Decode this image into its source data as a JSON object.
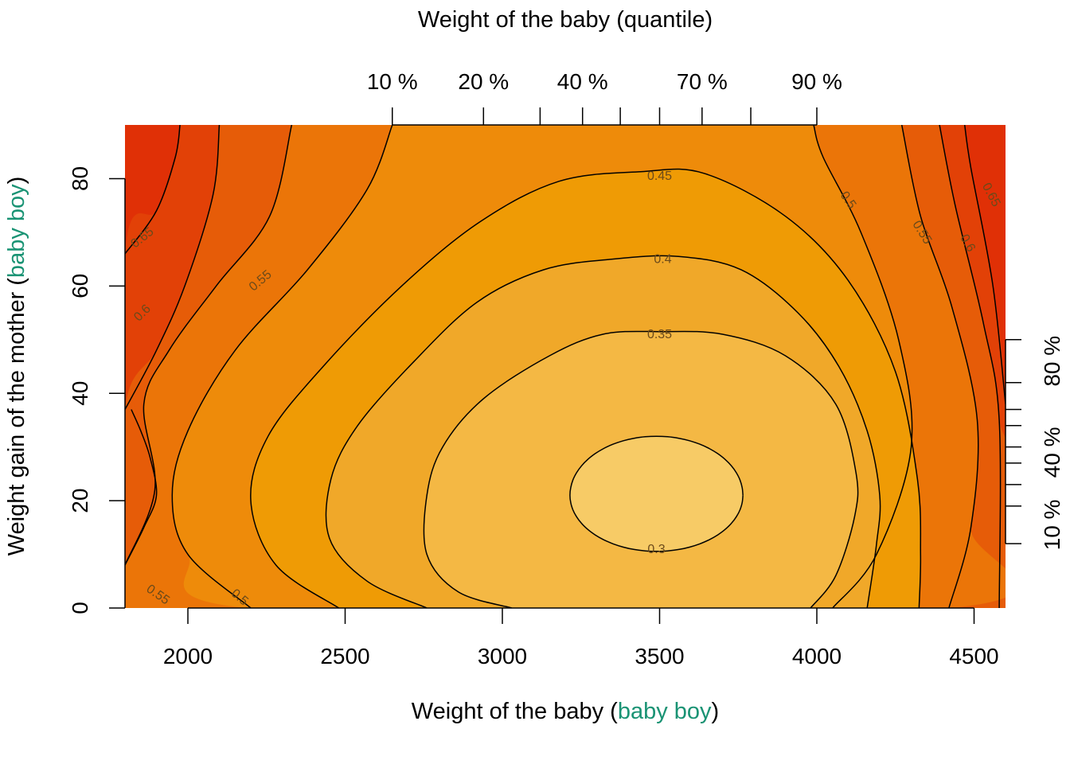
{
  "chart_data": {
    "type": "heatmap",
    "subtype": "filled-contour",
    "title": "",
    "xlabel": {
      "prefix": "Weight of the baby (",
      "highlight": "baby boy",
      "suffix": ")"
    },
    "ylabel": {
      "prefix": "Weight gain of the mother (",
      "highlight": "baby boy",
      "suffix": ")"
    },
    "top_axis_title": "Weight of the baby (quantile)",
    "highlight_color": "#1a9374",
    "xlim": [
      1800,
      4600
    ],
    "ylim": [
      0,
      90
    ],
    "x_ticks": [
      {
        "value": 2000,
        "label": "2000"
      },
      {
        "value": 2500,
        "label": "2500"
      },
      {
        "value": 3000,
        "label": "3000"
      },
      {
        "value": 3500,
        "label": "3500"
      },
      {
        "value": 4000,
        "label": "4000"
      },
      {
        "value": 4500,
        "label": "4500"
      }
    ],
    "y_ticks": [
      {
        "value": 0,
        "label": "0"
      },
      {
        "value": 20,
        "label": "20"
      },
      {
        "value": 40,
        "label": "40"
      },
      {
        "value": 60,
        "label": "60"
      },
      {
        "value": 80,
        "label": "80"
      }
    ],
    "top_quantile_ticks": [
      2650,
      2940,
      3120,
      3255,
      3375,
      3500,
      3635,
      3790,
      4000
    ],
    "top_quantile_labels": [
      {
        "value": 2650,
        "label": "10 %"
      },
      {
        "value": 2940,
        "label": "20 %"
      },
      {
        "value": 3255,
        "label": "40 %"
      },
      {
        "value": 3635,
        "label": "70 %"
      },
      {
        "value": 4000,
        "label": "90 %"
      }
    ],
    "right_quantile_ticks": [
      50,
      42,
      37,
      34,
      30,
      27,
      23,
      19,
      12
    ],
    "right_quantile_labels": [
      {
        "value": 46,
        "label": "80 %"
      },
      {
        "value": 29,
        "label": "40 %"
      },
      {
        "value": 15.5,
        "label": "10 %"
      }
    ],
    "contour_levels": [
      0.3,
      0.35,
      0.4,
      0.45,
      0.5,
      0.55,
      0.6,
      0.65
    ],
    "fill_colors": [
      "#f7cb66",
      "#f4b844",
      "#f0a829",
      "#ef9b05",
      "#ee8b0a",
      "#eb7508",
      "#e65c08",
      "#e24107",
      "#e03006"
    ],
    "contour_labels": [
      {
        "text": "0.3",
        "x": 3490,
        "y": 11,
        "angle": 0
      },
      {
        "text": "0.35",
        "x": 3500,
        "y": 51,
        "angle": 0
      },
      {
        "text": "0.4",
        "x": 3510,
        "y": 65,
        "angle": 0
      },
      {
        "text": "0.45",
        "x": 3500,
        "y": 80.5,
        "angle": 0
      },
      {
        "text": "0.5",
        "x": 4100,
        "y": 76,
        "angle": 55
      },
      {
        "text": "0.55",
        "x": 4335,
        "y": 70,
        "angle": 58
      },
      {
        "text": "0.6",
        "x": 4480,
        "y": 68,
        "angle": 60
      },
      {
        "text": "0.65",
        "x": 4555,
        "y": 77,
        "angle": 62
      },
      {
        "text": "0.65",
        "x": 1855,
        "y": 69,
        "angle": -38
      },
      {
        "text": "0.6",
        "x": 1855,
        "y": 55,
        "angle": -45
      },
      {
        "text": "0.55",
        "x": 2230,
        "y": 61,
        "angle": -40
      },
      {
        "text": "0.55",
        "x": 1905,
        "y": 2.5,
        "angle": 35
      },
      {
        "text": "0.5",
        "x": 2165,
        "y": 2,
        "angle": 40
      }
    ]
  }
}
